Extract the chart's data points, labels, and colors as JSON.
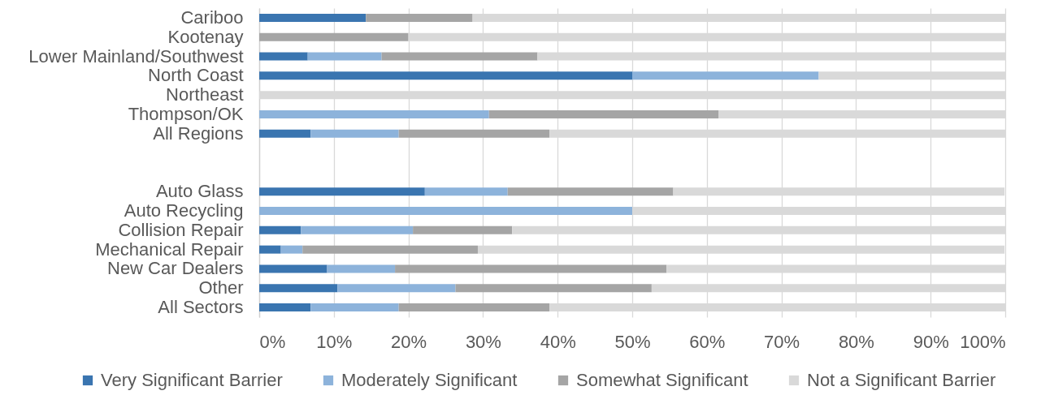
{
  "chart_data": {
    "type": "bar",
    "orientation": "horizontal",
    "stacked": true,
    "categories": [
      "Cariboo",
      "Kootenay",
      "Lower Mainland/Southwest",
      "North Coast",
      "Northeast",
      "Thompson/OK",
      "All Regions",
      null,
      null,
      "Auto Glass",
      "Auto Recycling",
      "Collision Repair",
      "Mechanical Repair",
      "New Car Dealers",
      "Other",
      "All Sectors"
    ],
    "series": [
      {
        "name": "Very Significant Barrier",
        "color": "#3a75b0",
        "values": [
          14.3,
          0,
          6.5,
          50,
          0,
          0,
          6.9,
          null,
          null,
          22.2,
          0,
          5.6,
          2.9,
          9.1,
          10.5,
          6.9
        ]
      },
      {
        "name": "Moderately Significant",
        "color": "#8db3db",
        "values": [
          0,
          0,
          9.9,
          25,
          0,
          30.8,
          11.8,
          null,
          null,
          11.1,
          50,
          15.0,
          2.9,
          9.1,
          15.8,
          11.8
        ]
      },
      {
        "name": "Somewhat Significant",
        "color": "#a5a5a5",
        "values": [
          14.3,
          20,
          20.9,
          0,
          0,
          30.8,
          20.2,
          null,
          null,
          22.2,
          0,
          13.3,
          23.5,
          36.4,
          26.3,
          20.2
        ]
      },
      {
        "name": "Not a Significant Barrier",
        "color": "#d9d9d9",
        "values": [
          71.4,
          80,
          62.7,
          25,
          100,
          38.5,
          61.1,
          null,
          null,
          44.4,
          50,
          66.1,
          70.6,
          45.5,
          47.4,
          61.1
        ]
      }
    ],
    "xlim": [
      0,
      100
    ],
    "xticks": [
      {
        "value": 0,
        "label": "0%"
      },
      {
        "value": 10,
        "label": "10%"
      },
      {
        "value": 20,
        "label": "20%"
      },
      {
        "value": 30,
        "label": "30%"
      },
      {
        "value": 40,
        "label": "40%"
      },
      {
        "value": 50,
        "label": "50%"
      },
      {
        "value": 60,
        "label": "60%"
      },
      {
        "value": 70,
        "label": "70%"
      },
      {
        "value": 80,
        "label": "80%"
      },
      {
        "value": 90,
        "label": "90%"
      },
      {
        "value": 100,
        "label": "100%"
      }
    ],
    "grid": "x",
    "legend": "bottom"
  }
}
